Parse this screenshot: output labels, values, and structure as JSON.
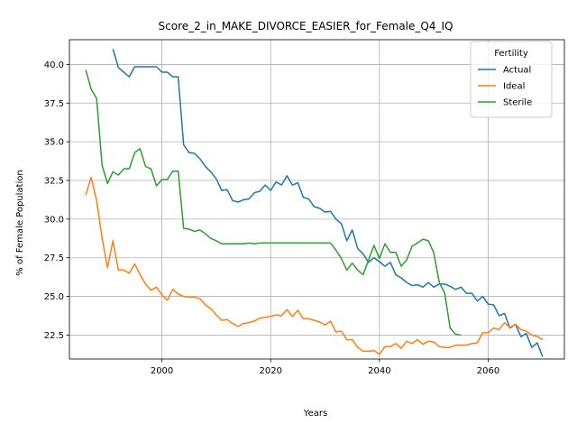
{
  "chart_data": {
    "type": "line",
    "title": "Score_2_in_MAKE_DIVORCE_EASIER_for_Female_Q4_IQ",
    "xlabel": "Years",
    "ylabel": "% of Female Population",
    "xlim": [
      1983,
      2074
    ],
    "ylim": [
      20.95,
      41.6
    ],
    "xticks": [
      2000,
      2020,
      2040,
      2060
    ],
    "yticks": [
      22.5,
      25.0,
      27.5,
      30.0,
      32.5,
      35.0,
      37.5,
      40.0
    ],
    "ytick_labels": [
      "22.5",
      "25.0",
      "27.5",
      "30.0",
      "32.5",
      "35.0",
      "37.5",
      "40.0"
    ],
    "grid": true,
    "legend": {
      "title": "Fertility",
      "position": "top-right"
    },
    "series": [
      {
        "name": "Actual",
        "color": "#1f77b4",
        "x": [
          1991,
          1992,
          1993,
          1994,
          1995,
          1996,
          1997,
          1998,
          1999,
          2000,
          2001,
          2002,
          2003,
          2004,
          2005,
          2006,
          2007,
          2008,
          2009,
          2010,
          2011,
          2012,
          2013,
          2014,
          2015,
          2016,
          2017,
          2018,
          2019,
          2020,
          2021,
          2022,
          2023,
          2024,
          2025,
          2026,
          2027,
          2028,
          2029,
          2030,
          2031,
          2032,
          2033,
          2034,
          2035,
          2036,
          2037,
          2038,
          2039,
          2040,
          2041,
          2042,
          2043,
          2044,
          2045,
          2046,
          2047,
          2048,
          2049,
          2050,
          2051,
          2052,
          2053,
          2054,
          2055,
          2056,
          2057,
          2058,
          2059,
          2060,
          2061,
          2062,
          2063,
          2064,
          2065,
          2066,
          2067,
          2068,
          2069,
          2070
        ],
        "y": [
          41.0,
          39.8,
          39.5,
          39.2,
          39.85,
          39.85,
          39.85,
          39.85,
          39.85,
          39.5,
          39.5,
          39.2,
          39.2,
          34.8,
          34.3,
          34.25,
          33.9,
          33.4,
          33.05,
          32.6,
          31.85,
          31.9,
          31.2,
          31.1,
          31.25,
          31.3,
          31.7,
          31.8,
          32.2,
          31.85,
          32.4,
          32.2,
          32.8,
          32.2,
          32.35,
          31.4,
          31.3,
          30.8,
          30.7,
          30.45,
          30.5,
          30.0,
          29.7,
          28.6,
          29.3,
          28.1,
          27.75,
          27.2,
          27.5,
          27.25,
          26.95,
          27.2,
          26.4,
          26.2,
          25.9,
          25.7,
          25.75,
          25.6,
          25.9,
          25.6,
          25.8,
          25.8,
          25.65,
          25.45,
          25.6,
          25.2,
          25.2,
          24.7,
          25.0,
          24.5,
          24.45,
          23.75,
          23.9,
          22.95,
          23.2,
          22.4,
          22.6,
          21.7,
          22.0,
          21.1
        ]
      },
      {
        "name": "Ideal",
        "color": "#ff7f0e",
        "x": [
          1986,
          1987,
          1988,
          1989,
          1990,
          1991,
          1992,
          1993,
          1994,
          1995,
          1996,
          1997,
          1998,
          1999,
          2000,
          2001,
          2002,
          2003,
          2004,
          2005,
          2006,
          2007,
          2008,
          2009,
          2010,
          2011,
          2012,
          2013,
          2014,
          2015,
          2016,
          2017,
          2018,
          2019,
          2020,
          2021,
          2022,
          2023,
          2024,
          2025,
          2026,
          2027,
          2028,
          2029,
          2030,
          2031,
          2032,
          2033,
          2034,
          2035,
          2036,
          2037,
          2038,
          2039,
          2040,
          2041,
          2042,
          2043,
          2044,
          2045,
          2046,
          2047,
          2048,
          2049,
          2050,
          2051,
          2052,
          2053,
          2054,
          2055,
          2056,
          2057,
          2058,
          2059,
          2060,
          2061,
          2062,
          2063,
          2064,
          2065,
          2066,
          2067,
          2068,
          2069,
          2070
        ],
        "y": [
          31.55,
          32.7,
          31.2,
          28.8,
          26.85,
          28.6,
          26.7,
          26.7,
          26.5,
          27.1,
          26.4,
          25.8,
          25.4,
          25.6,
          25.1,
          24.75,
          25.45,
          25.15,
          25.0,
          24.95,
          24.95,
          24.85,
          24.45,
          24.2,
          23.8,
          23.45,
          23.5,
          23.25,
          23.05,
          23.25,
          23.3,
          23.4,
          23.6,
          23.65,
          23.7,
          23.8,
          23.75,
          24.15,
          23.7,
          24.1,
          23.55,
          23.55,
          23.45,
          23.35,
          23.15,
          23.4,
          22.7,
          22.75,
          22.2,
          22.2,
          21.7,
          21.45,
          21.45,
          21.5,
          21.25,
          21.75,
          21.75,
          21.95,
          21.65,
          22.1,
          21.95,
          22.2,
          21.9,
          22.1,
          22.05,
          21.75,
          21.7,
          21.7,
          21.85,
          21.85,
          21.85,
          21.95,
          22.0,
          22.65,
          22.65,
          22.95,
          22.85,
          23.3,
          23.0,
          23.2,
          22.85,
          22.75,
          22.5,
          22.4,
          22.2
        ]
      },
      {
        "name": "Sterile",
        "color": "#2ca02c",
        "x": [
          1986,
          1987,
          1988,
          1989,
          1990,
          1991,
          1992,
          1993,
          1994,
          1995,
          1996,
          1997,
          1998,
          1999,
          2000,
          2001,
          2002,
          2003,
          2004,
          2005,
          2006,
          2007,
          2008,
          2009,
          2010,
          2011,
          2012,
          2013,
          2014,
          2015,
          2016,
          2017,
          2018,
          2019,
          2020,
          2021,
          2022,
          2023,
          2024,
          2025,
          2026,
          2027,
          2028,
          2029,
          2030,
          2031,
          2032,
          2033,
          2034,
          2035,
          2036,
          2037,
          2038,
          2039,
          2040,
          2041,
          2042,
          2043,
          2044,
          2045,
          2046,
          2047,
          2048,
          2049,
          2050,
          2051,
          2052,
          2053,
          2054,
          2055
        ],
        "y": [
          39.65,
          38.4,
          37.8,
          33.5,
          32.3,
          33.05,
          32.85,
          33.25,
          33.25,
          34.3,
          34.55,
          33.4,
          33.25,
          32.15,
          32.55,
          32.55,
          33.1,
          33.1,
          29.4,
          29.35,
          29.2,
          29.3,
          29.05,
          28.75,
          28.6,
          28.4,
          28.4,
          28.4,
          28.4,
          28.4,
          28.45,
          28.4,
          28.45,
          28.45,
          28.45,
          28.45,
          28.45,
          28.45,
          28.45,
          28.45,
          28.45,
          28.45,
          28.45,
          28.45,
          28.45,
          28.45,
          28.0,
          27.45,
          26.7,
          27.15,
          26.7,
          26.4,
          27.35,
          28.3,
          27.45,
          28.4,
          27.85,
          27.85,
          26.95,
          27.35,
          28.25,
          28.45,
          28.7,
          28.6,
          27.8,
          25.9,
          25.2,
          22.95,
          22.55,
          22.5
        ]
      }
    ]
  }
}
